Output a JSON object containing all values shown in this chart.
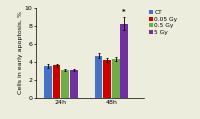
{
  "groups": [
    "24h",
    "48h"
  ],
  "series": [
    "CT",
    "0.05 Gy",
    "0.5 Gy",
    "5 Gy"
  ],
  "colors": [
    "#4472c4",
    "#cc0000",
    "#70ad47",
    "#7030a0"
  ],
  "values": [
    [
      3.55,
      3.6,
      3.1,
      3.1
    ],
    [
      4.7,
      4.2,
      4.35,
      8.3
    ]
  ],
  "errors": [
    [
      0.25,
      0.2,
      0.15,
      0.15
    ],
    [
      0.3,
      0.25,
      0.25,
      0.75
    ]
  ],
  "ylabel": "Cells in early apoptosis, %",
  "ylim": [
    0,
    10
  ],
  "yticks": [
    0,
    2,
    4,
    6,
    8,
    10
  ],
  "annotation": "*",
  "bg_color": "#ededde",
  "label_fontsize": 4.5,
  "tick_fontsize": 4.5,
  "legend_fontsize": 4.2
}
